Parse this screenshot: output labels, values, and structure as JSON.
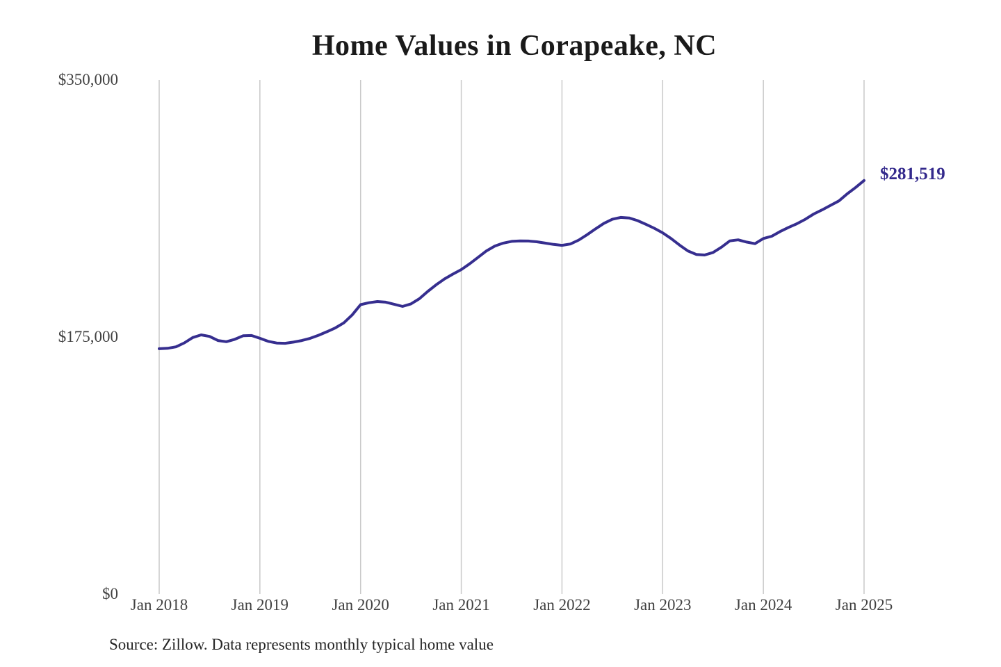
{
  "title": "Home Values in Corapeake, NC",
  "y_axis": {
    "labels": [
      "$350,000",
      "$175,000",
      "$0"
    ]
  },
  "end_label": "$281,519",
  "source_note": "Source: Zillow. Data represents monthly typical home value",
  "colors": {
    "line": "#362e8f",
    "grid": "#c9c9c9",
    "title": "#1a1a1a",
    "axis_text": "#414141",
    "end_label": "#33298c",
    "source_text": "#262626"
  },
  "chart_data": {
    "type": "line",
    "title": "Home Values in Corapeake, NC",
    "xlabel": "",
    "ylabel": "",
    "ylim": [
      0,
      350000
    ],
    "y_ticks": [
      0,
      175000,
      350000
    ],
    "y_tick_labels": [
      "$0",
      "$175,000",
      "$350,000"
    ],
    "x_tick_labels": [
      "Jan 2018",
      "Jan 2019",
      "Jan 2020",
      "Jan 2021",
      "Jan 2022",
      "Jan 2023",
      "Jan 2024",
      "Jan 2025"
    ],
    "grid": "vertical-only",
    "legend": "none",
    "final_value": 281519,
    "final_value_label": "$281,519",
    "x": [
      "2018-01",
      "2018-02",
      "2018-03",
      "2018-04",
      "2018-05",
      "2018-06",
      "2018-07",
      "2018-08",
      "2018-09",
      "2018-10",
      "2018-11",
      "2018-12",
      "2019-01",
      "2019-02",
      "2019-03",
      "2019-04",
      "2019-05",
      "2019-06",
      "2019-07",
      "2019-08",
      "2019-09",
      "2019-10",
      "2019-11",
      "2019-12",
      "2020-01",
      "2020-02",
      "2020-03",
      "2020-04",
      "2020-05",
      "2020-06",
      "2020-07",
      "2020-08",
      "2020-09",
      "2020-10",
      "2020-11",
      "2020-12",
      "2021-01",
      "2021-02",
      "2021-03",
      "2021-04",
      "2021-05",
      "2021-06",
      "2021-07",
      "2021-08",
      "2021-09",
      "2021-10",
      "2021-11",
      "2021-12",
      "2022-01",
      "2022-02",
      "2022-03",
      "2022-04",
      "2022-05",
      "2022-06",
      "2022-07",
      "2022-08",
      "2022-09",
      "2022-10",
      "2022-11",
      "2022-12",
      "2023-01",
      "2023-02",
      "2023-03",
      "2023-04",
      "2023-05",
      "2023-06",
      "2023-07",
      "2023-08",
      "2023-09",
      "2023-10",
      "2023-11",
      "2023-12",
      "2024-01",
      "2024-02",
      "2024-03",
      "2024-04",
      "2024-05",
      "2024-06",
      "2024-07",
      "2024-08",
      "2024-09",
      "2024-10",
      "2024-11",
      "2024-12",
      "2025-01"
    ],
    "series": [
      {
        "name": "Monthly typical home value",
        "values": [
          167000,
          167300,
          168300,
          171000,
          174600,
          176400,
          175400,
          172600,
          171800,
          173400,
          175800,
          176000,
          174100,
          172000,
          170900,
          170700,
          171500,
          172600,
          174100,
          176200,
          178600,
          181200,
          184600,
          190000,
          197000,
          198300,
          199100,
          198700,
          197300,
          195800,
          197500,
          201000,
          206000,
          210500,
          214500,
          217800,
          220900,
          224800,
          229200,
          233600,
          236900,
          238900,
          240100,
          240400,
          240300,
          239800,
          238900,
          238000,
          237400,
          238300,
          241000,
          244600,
          248600,
          252400,
          255100,
          256400,
          256000,
          254200,
          251700,
          249000,
          245900,
          242000,
          237600,
          233600,
          231200,
          230800,
          232500,
          236100,
          240400,
          241100,
          239600,
          238500,
          242000,
          243600,
          246800,
          249600,
          252100,
          255100,
          258700,
          261500,
          264600,
          267600,
          272500,
          276800,
          281519
        ]
      }
    ]
  }
}
